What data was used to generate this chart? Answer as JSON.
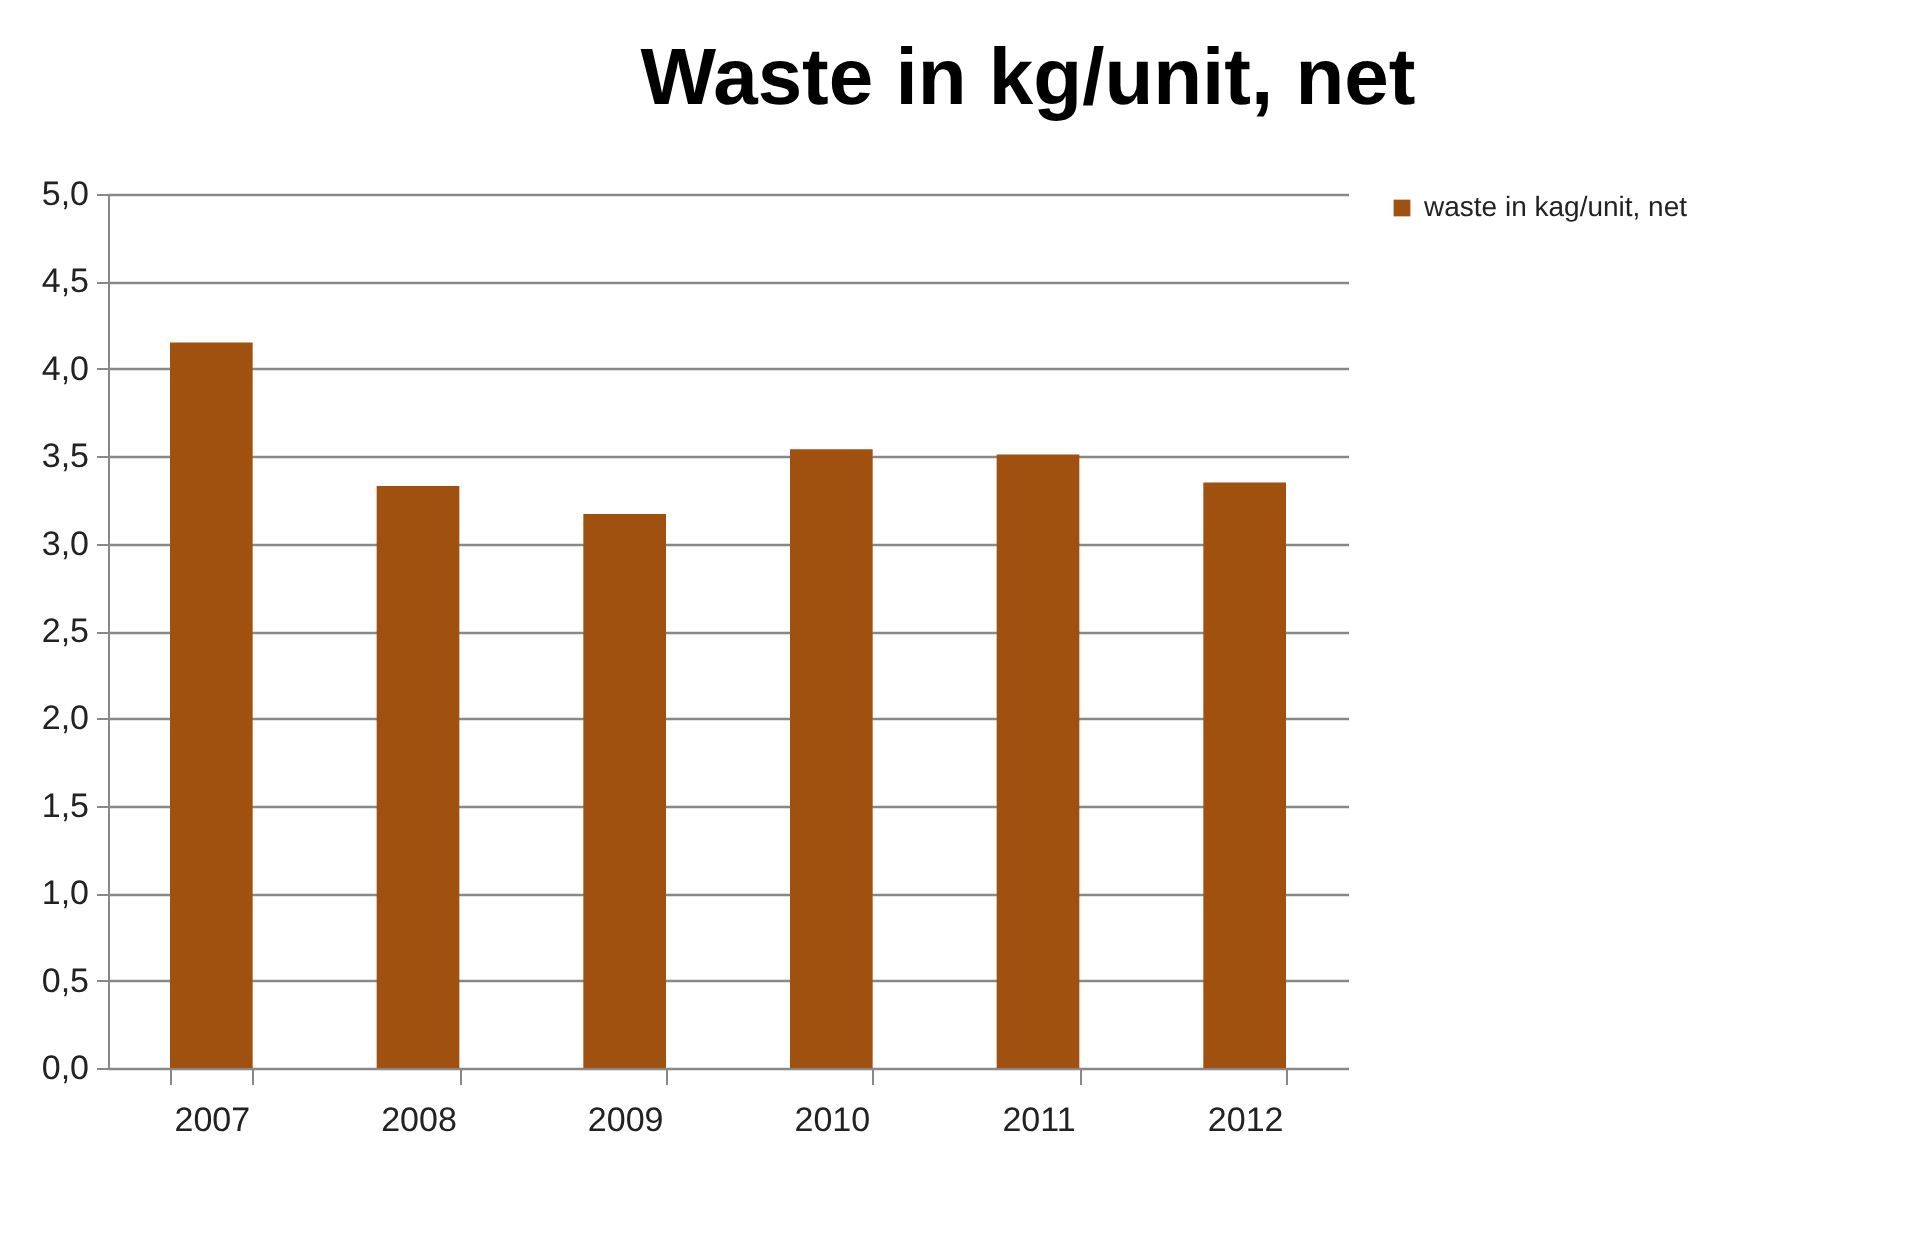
{
  "chart_data": {
    "type": "bar",
    "title": "Waste in kg/unit,  net",
    "categories": [
      "2007",
      "2008",
      "2009",
      "2010",
      "2011",
      "2012"
    ],
    "series": [
      {
        "name": "waste in kag/unit, net",
        "color": "#a0500f",
        "values": [
          4.15,
          3.33,
          3.17,
          3.54,
          3.51,
          3.35
        ]
      }
    ],
    "ylim": [
      0,
      5
    ],
    "yticks": [
      {
        "value": 0,
        "label": "0,0"
      },
      {
        "value": 0.5,
        "label": "0,5"
      },
      {
        "value": 1,
        "label": "1,0"
      },
      {
        "value": 1.5,
        "label": "1,5"
      },
      {
        "value": 2,
        "label": "2,0"
      },
      {
        "value": 2.5,
        "label": "2,5"
      },
      {
        "value": 3,
        "label": "3,0"
      },
      {
        "value": 3.5,
        "label": "3,5"
      },
      {
        "value": 4,
        "label": "4,0"
      },
      {
        "value": 4.5,
        "label": "4,5"
      },
      {
        "value": 5,
        "label": "5,0"
      }
    ],
    "grid": "y",
    "legend": "right"
  }
}
